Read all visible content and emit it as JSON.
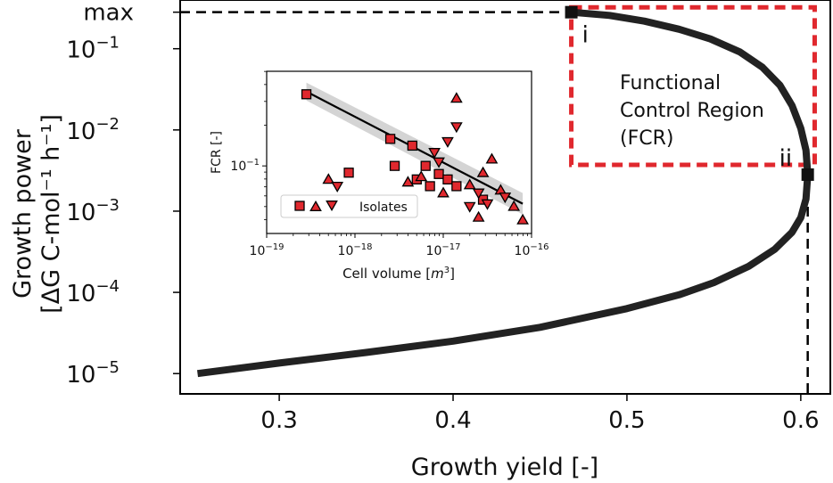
{
  "chart_data": [
    {
      "type": "line",
      "xlabel": "Growth yield [-]",
      "ylabel_line1": "Growth power",
      "ylabel_line2": "[ΔG C-mol⁻¹ h⁻¹]",
      "y_scale": "log",
      "xlim": [
        0.243,
        0.617
      ],
      "ylim_log10": [
        -5.25,
        -0.4
      ],
      "x_ticks": [
        {
          "value": 0.3,
          "label": "0.3"
        },
        {
          "value": 0.4,
          "label": "0.4"
        },
        {
          "value": 0.5,
          "label": "0.5"
        },
        {
          "value": 0.6,
          "label": "0.6"
        }
      ],
      "y_ticks": [
        {
          "log10": -5,
          "base": "10",
          "exp": "−5"
        },
        {
          "log10": -4,
          "base": "10",
          "exp": "−4"
        },
        {
          "log10": -3,
          "base": "10",
          "exp": "−3"
        },
        {
          "log10": -2,
          "base": "10",
          "exp": "−2"
        },
        {
          "log10": -1,
          "base": "10",
          "exp": "−1"
        }
      ],
      "y_max_label": "max",
      "y_max_log10": -0.55,
      "series": [
        {
          "x": [
            0.253,
            0.3,
            0.35,
            0.4,
            0.45,
            0.5,
            0.53,
            0.55,
            0.57,
            0.585,
            0.595,
            0.6,
            0.603,
            0.604,
            0.603,
            0.6,
            0.595,
            0.588,
            0.578,
            0.565,
            0.548,
            0.53,
            0.51,
            0.49,
            0.468
          ],
          "y_log10": [
            -5.0,
            -4.87,
            -4.74,
            -4.6,
            -4.43,
            -4.2,
            -4.03,
            -3.88,
            -3.68,
            -3.47,
            -3.26,
            -3.08,
            -2.85,
            -2.55,
            -2.25,
            -1.98,
            -1.7,
            -1.45,
            -1.23,
            -1.04,
            -0.88,
            -0.76,
            -0.66,
            -0.59,
            -0.55
          ],
          "color": "#222222"
        }
      ],
      "points": [
        {
          "label": "i",
          "x": 0.468,
          "y_log10": -0.55
        },
        {
          "label": "ii",
          "x": 0.604,
          "y_log10": -2.55
        }
      ],
      "fcr_box": {
        "x": [
          0.468,
          0.608
        ],
        "y_log10": [
          -2.43,
          -0.49
        ],
        "color": "#e0282e"
      },
      "fcr_text": [
        "Functional",
        "Control Region",
        "(FCR)"
      ]
    },
    {
      "type": "scatter",
      "xlabel": "Cell volume [m³]",
      "xlabel_main": "Cell volume [",
      "xlabel_unit": "m",
      "xlabel_exp": "3",
      "xlabel_end": "]",
      "ylabel": "FCR [-]",
      "x_scale": "log",
      "y_scale": "log",
      "xlim_log10": [
        -19,
        -16
      ],
      "ylim_log10": [
        -1.5,
        -0.3
      ],
      "x_ticks": [
        {
          "log10": -19,
          "base": "10",
          "exp": "−19"
        },
        {
          "log10": -18,
          "base": "10",
          "exp": "−18"
        },
        {
          "log10": -17,
          "base": "10",
          "exp": "−17"
        },
        {
          "log10": -16,
          "base": "10",
          "exp": "−16"
        }
      ],
      "y_ticks": [
        {
          "log10": -1,
          "base": "10",
          "exp": "−1"
        }
      ],
      "legend": {
        "label": "Isolates",
        "position": "lower left"
      },
      "marker_color": "#e0282e",
      "fit_line": {
        "x_log10": [
          -18.55,
          -16.1
        ],
        "y_log10": [
          -0.45,
          -1.28
        ]
      },
      "points": [
        {
          "marker": "square",
          "x_log10": -18.55,
          "y_log10": -0.47
        },
        {
          "marker": "square",
          "x_log10": -18.07,
          "y_log10": -1.05
        },
        {
          "marker": "square",
          "x_log10": -17.6,
          "y_log10": -0.8
        },
        {
          "marker": "square",
          "x_log10": -17.55,
          "y_log10": -1.0
        },
        {
          "marker": "square",
          "x_log10": -17.35,
          "y_log10": -0.85
        },
        {
          "marker": "square",
          "x_log10": -17.3,
          "y_log10": -1.1
        },
        {
          "marker": "square",
          "x_log10": -17.2,
          "y_log10": -1.0
        },
        {
          "marker": "square",
          "x_log10": -17.15,
          "y_log10": -1.15
        },
        {
          "marker": "square",
          "x_log10": -17.05,
          "y_log10": -1.06
        },
        {
          "marker": "square",
          "x_log10": -16.95,
          "y_log10": -1.1
        },
        {
          "marker": "square",
          "x_log10": -16.85,
          "y_log10": -1.15
        },
        {
          "marker": "square",
          "x_log10": -16.55,
          "y_log10": -1.25
        },
        {
          "marker": "triangle-up",
          "x_log10": -18.3,
          "y_log10": -1.1
        },
        {
          "marker": "triangle-up",
          "x_log10": -17.4,
          "y_log10": -1.12
        },
        {
          "marker": "triangle-up",
          "x_log10": -17.25,
          "y_log10": -1.08
        },
        {
          "marker": "triangle-up",
          "x_log10": -16.85,
          "y_log10": -0.5
        },
        {
          "marker": "triangle-up",
          "x_log10": -16.7,
          "y_log10": -1.14
        },
        {
          "marker": "triangle-up",
          "x_log10": -16.55,
          "y_log10": -1.05
        },
        {
          "marker": "triangle-up",
          "x_log10": -16.45,
          "y_log10": -0.95
        },
        {
          "marker": "triangle-up",
          "x_log10": -16.35,
          "y_log10": -1.18
        },
        {
          "marker": "triangle-up",
          "x_log10": -16.2,
          "y_log10": -1.3
        },
        {
          "marker": "triangle-up",
          "x_log10": -16.1,
          "y_log10": -1.4
        },
        {
          "marker": "triangle-up",
          "x_log10": -16.6,
          "y_log10": -1.38
        },
        {
          "marker": "triangle-up",
          "x_log10": -17.0,
          "y_log10": -1.2
        },
        {
          "marker": "triangle-down",
          "x_log10": -18.2,
          "y_log10": -1.15
        },
        {
          "marker": "triangle-down",
          "x_log10": -17.1,
          "y_log10": -0.9
        },
        {
          "marker": "triangle-down",
          "x_log10": -17.05,
          "y_log10": -0.97
        },
        {
          "marker": "triangle-down",
          "x_log10": -16.95,
          "y_log10": -0.82
        },
        {
          "marker": "triangle-down",
          "x_log10": -16.85,
          "y_log10": -0.71
        },
        {
          "marker": "triangle-down",
          "x_log10": -16.6,
          "y_log10": -1.2
        },
        {
          "marker": "triangle-down",
          "x_log10": -16.5,
          "y_log10": -1.28
        },
        {
          "marker": "triangle-down",
          "x_log10": -16.3,
          "y_log10": -1.23
        },
        {
          "marker": "triangle-down",
          "x_log10": -16.7,
          "y_log10": -1.3
        }
      ]
    }
  ]
}
